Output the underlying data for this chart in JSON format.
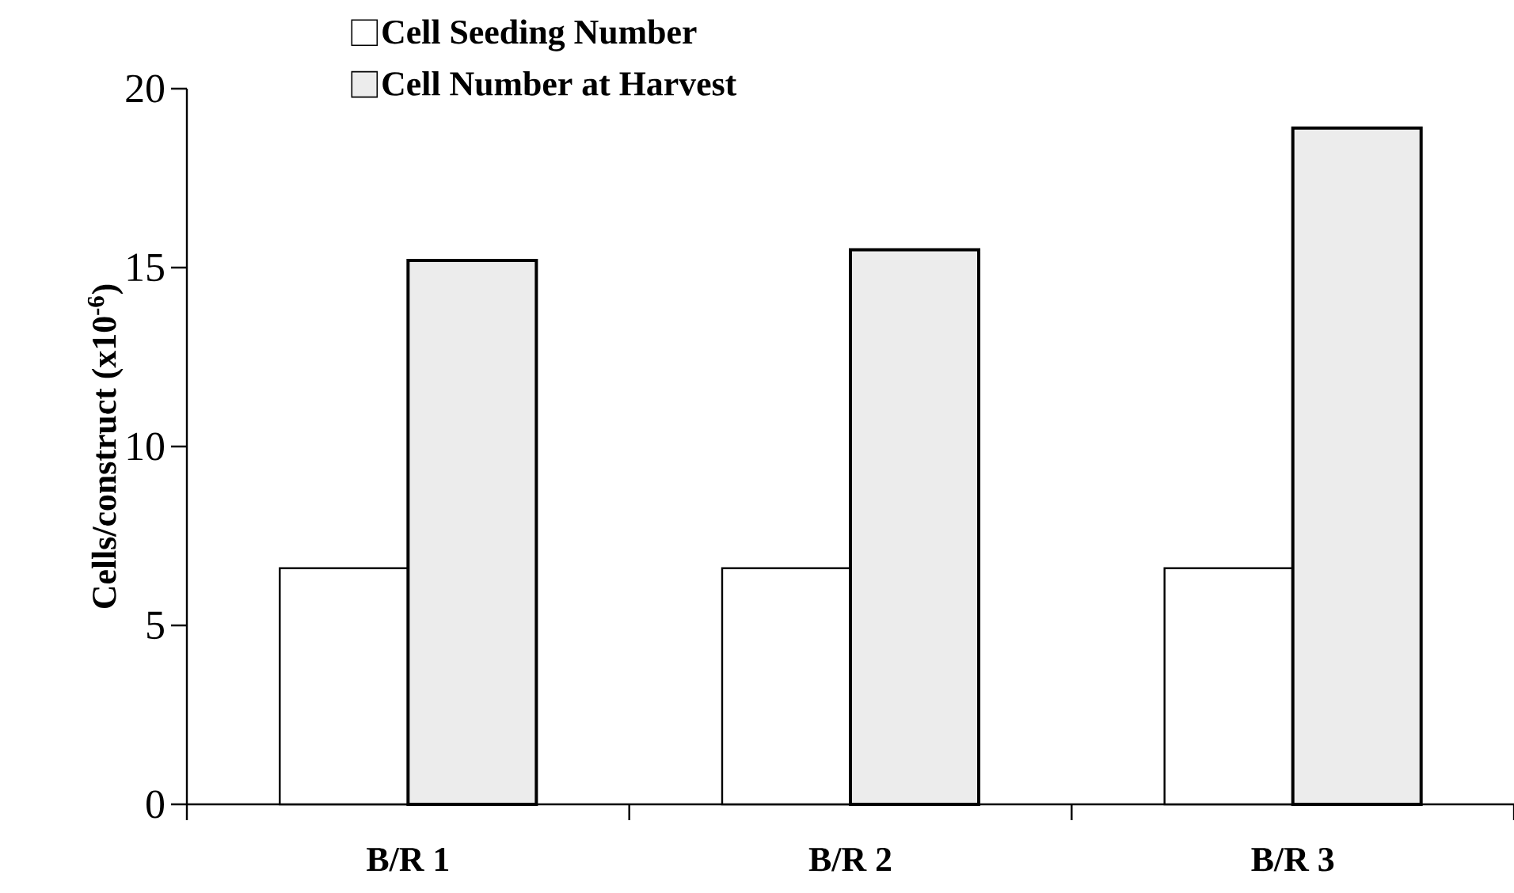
{
  "chart_data": {
    "type": "bar",
    "categories": [
      "B/R 1",
      "B/R 2",
      "B/R 3"
    ],
    "series": [
      {
        "name": "Cell Seeding Number",
        "color": "#ffffff",
        "values": [
          6.6,
          6.6,
          6.6
        ]
      },
      {
        "name": "Cell Number at Harvest",
        "color": "#ececec",
        "values": [
          15.2,
          15.5,
          18.9
        ]
      }
    ],
    "ylabel": "Cells/construct (x10$^{-6}$)",
    "ylim": [
      0,
      20
    ],
    "yticks": [
      0,
      5,
      10,
      15,
      20
    ],
    "legend": "top"
  }
}
